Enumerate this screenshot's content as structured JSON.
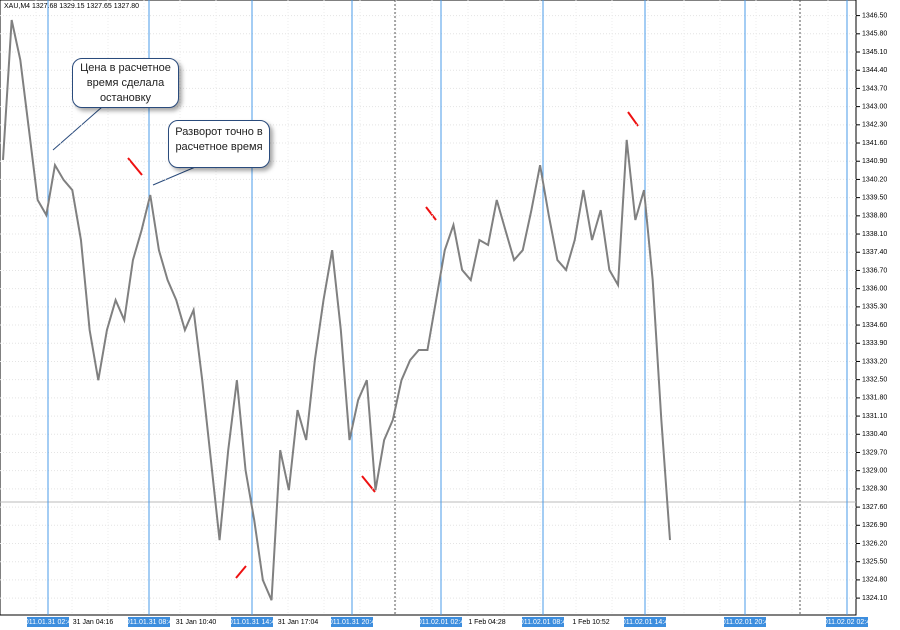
{
  "chart_data": {
    "type": "line",
    "title": "XAU,M4 1327.68 1329.15 1327.65 1327.80",
    "color": "#808080",
    "values": [
      1340.95,
      1346.33,
      1344.79,
      1342.1,
      1339.41,
      1338.83,
      1340.75,
      1340.18,
      1339.79,
      1337.87,
      1334.41,
      1332.48,
      1334.41,
      1335.56,
      1334.79,
      1337.1,
      1338.25,
      1339.6,
      1337.48,
      1336.33,
      1335.56,
      1334.41,
      1335.18,
      1332.48,
      1329.41,
      1326.33,
      1329.79,
      1332.48,
      1329.02,
      1327.1,
      1324.79,
      1324.02,
      1329.79,
      1328.25,
      1331.33,
      1330.18,
      1333.25,
      1335.56,
      1337.48,
      1334.41,
      1330.18,
      1331.72,
      1332.48,
      1328.25,
      1330.18,
      1330.95,
      1332.48,
      1333.25,
      1333.64,
      1333.64,
      1335.56,
      1337.48,
      1338.45,
      1336.72,
      1336.33,
      1337.87,
      1337.68,
      1339.41,
      1338.25,
      1337.1,
      1337.48,
      1339.02,
      1340.75,
      1338.83,
      1337.1,
      1336.72,
      1337.87,
      1339.79,
      1337.87,
      1339.02,
      1336.72,
      1336.14,
      1341.72,
      1338.64,
      1339.79,
      1336.33,
      1330.95,
      1326.33
    ],
    "ylim": [
      1323.45,
      1347.1
    ],
    "yticks": [
      {
        "value": 1346.5,
        "label": "1346.50"
      },
      {
        "value": 1345.8,
        "label": "1345.80"
      },
      {
        "value": 1345.1,
        "label": "1345.10"
      },
      {
        "value": 1344.4,
        "label": "1344.40"
      },
      {
        "value": 1343.7,
        "label": "1343.70"
      },
      {
        "value": 1343,
        "label": "1343.00"
      },
      {
        "value": 1342.3,
        "label": "1342.30"
      },
      {
        "value": 1341.6,
        "label": "1341.60"
      },
      {
        "value": 1340.9,
        "label": "1340.90"
      },
      {
        "value": 1340.2,
        "label": "1340.20"
      },
      {
        "value": 1339.5,
        "label": "1339.50"
      },
      {
        "value": 1338.8,
        "label": "1338.80"
      },
      {
        "value": 1338.1,
        "label": "1338.10"
      },
      {
        "value": 1337.4,
        "label": "1337.40"
      },
      {
        "value": 1336.7,
        "label": "1336.70"
      },
      {
        "value": 1336,
        "label": "1336.00"
      },
      {
        "value": 1335.3,
        "label": "1335.30"
      },
      {
        "value": 1334.6,
        "label": "1334.60"
      },
      {
        "value": 1333.9,
        "label": "1333.90"
      },
      {
        "value": 1333.2,
        "label": "1333.20"
      },
      {
        "value": 1332.5,
        "label": "1332.50"
      },
      {
        "value": 1331.8,
        "label": "1331.80"
      },
      {
        "value": 1331.1,
        "label": "1331.10"
      },
      {
        "value": 1330.4,
        "label": "1330.40"
      },
      {
        "value": 1329.7,
        "label": "1329.70"
      },
      {
        "value": 1329,
        "label": "1329.00"
      },
      {
        "value": 1328.3,
        "label": "1328.30"
      },
      {
        "value": 1327.6,
        "label": "1327.60"
      },
      {
        "value": 1326.9,
        "label": "1326.90"
      },
      {
        "value": 1326.2,
        "label": "1326.20"
      },
      {
        "value": 1325.5,
        "label": "1325.50"
      },
      {
        "value": 1324.8,
        "label": "1324.80"
      },
      {
        "value": 1324.1,
        "label": "1324.10"
      }
    ],
    "time_labels": [
      "31 Jan 04:16",
      "31 Jan 10:40",
      "31 Jan 17:04",
      "1 Feb 04:28",
      "1 Feb 10:52"
    ],
    "marker_labels": [
      "2011.01.31 02:44",
      "2011.01.31 08:44",
      "2011.01.31 14:44",
      "2011.01.31 20:44",
      "2011.02.01 02:44",
      "2011.02.01 08:44",
      "2011.02.01 14:44",
      "2011.02.01 20:44",
      "2011.02.02 02:44"
    ],
    "annotations": [
      "Цена в расчетное время сделала остановку",
      "Разворот точно в расчетное время"
    ],
    "grid": true
  }
}
